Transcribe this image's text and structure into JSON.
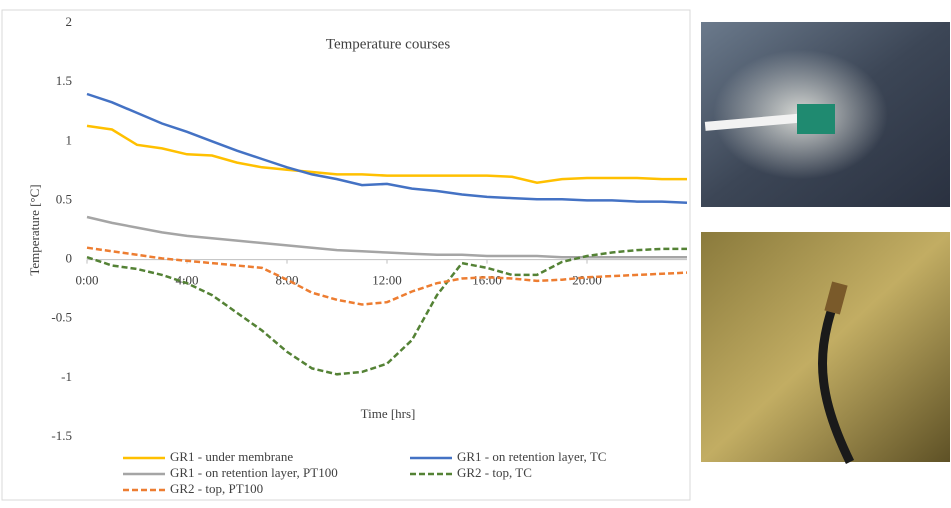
{
  "chart_data": {
    "type": "line",
    "title": "Temperature courses",
    "x_label": "Time [hrs]",
    "y_label": "Temperature [°C]",
    "x": [
      0,
      1,
      2,
      3,
      4,
      5,
      6,
      7,
      8,
      9,
      10,
      11,
      12,
      13,
      14,
      15,
      16,
      17,
      18,
      19,
      20,
      21,
      22,
      23,
      24
    ],
    "xlim": [
      0,
      24
    ],
    "xticks": [
      {
        "value": 0,
        "label": "0:00"
      },
      {
        "value": 4,
        "label": "4:00"
      },
      {
        "value": 8,
        "label": "8:00"
      },
      {
        "value": 12,
        "label": "12:00"
      },
      {
        "value": 16,
        "label": "16:00"
      },
      {
        "value": 20,
        "label": "20:00"
      }
    ],
    "ylim": [
      -1.5,
      2
    ],
    "yticks": [
      -1.5,
      -1,
      -0.5,
      0,
      0.5,
      1,
      1.5,
      2
    ],
    "grid": false,
    "legend": "bottom",
    "series": [
      {
        "name": "GR1 - under membrane",
        "color": "#ffc000",
        "dash": "solid",
        "values": [
          1.13,
          1.1,
          0.97,
          0.94,
          0.89,
          0.88,
          0.82,
          0.78,
          0.76,
          0.74,
          0.72,
          0.72,
          0.71,
          0.71,
          0.71,
          0.71,
          0.71,
          0.7,
          0.65,
          0.68,
          0.69,
          0.69,
          0.69,
          0.68,
          0.68
        ]
      },
      {
        "name": "GR1 - on retention layer, TC",
        "color": "#4472c4",
        "dash": "solid",
        "values": [
          1.4,
          1.33,
          1.24,
          1.15,
          1.08,
          1.0,
          0.92,
          0.85,
          0.78,
          0.72,
          0.68,
          0.63,
          0.64,
          0.6,
          0.58,
          0.55,
          0.53,
          0.52,
          0.51,
          0.51,
          0.5,
          0.5,
          0.49,
          0.49,
          0.48
        ]
      },
      {
        "name": "GR1 - on retention layer, PT100",
        "color": "#a5a5a5",
        "dash": "solid",
        "values": [
          0.36,
          0.31,
          0.27,
          0.23,
          0.2,
          0.18,
          0.16,
          0.14,
          0.12,
          0.1,
          0.08,
          0.07,
          0.06,
          0.05,
          0.04,
          0.04,
          0.03,
          0.03,
          0.03,
          0.02,
          0.02,
          0.02,
          0.02,
          0.02,
          0.02
        ]
      },
      {
        "name": "GR2 - top, TC",
        "color": "#548235",
        "dash": "dashed",
        "values": [
          0.02,
          -0.05,
          -0.08,
          -0.13,
          -0.2,
          -0.3,
          -0.45,
          -0.6,
          -0.78,
          -0.92,
          -0.97,
          -0.95,
          -0.88,
          -0.68,
          -0.3,
          -0.03,
          -0.07,
          -0.13,
          -0.13,
          -0.02,
          0.03,
          0.06,
          0.08,
          0.09,
          0.09
        ]
      },
      {
        "name": "GR2 - top, PT100",
        "color": "#ed7d31",
        "dash": "dashed",
        "values": [
          0.1,
          0.07,
          0.04,
          0.01,
          -0.01,
          -0.03,
          -0.05,
          -0.07,
          -0.17,
          -0.28,
          -0.34,
          -0.38,
          -0.36,
          -0.27,
          -0.2,
          -0.16,
          -0.15,
          -0.16,
          -0.18,
          -0.17,
          -0.15,
          -0.14,
          -0.13,
          -0.12,
          -0.11
        ]
      }
    ]
  }
}
